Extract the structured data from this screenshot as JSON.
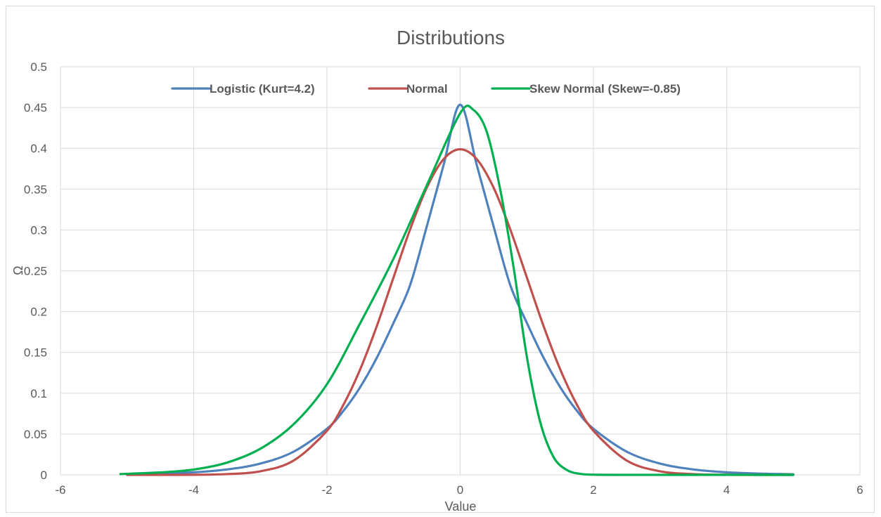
{
  "chart_data": {
    "type": "line",
    "title": "Distributions",
    "xlabel": "Value",
    "ylabel": "Ω",
    "xlim": [
      -6,
      6
    ],
    "ylim": [
      0,
      0.5
    ],
    "x_ticks": [
      -6,
      -4,
      -2,
      0,
      2,
      4,
      6
    ],
    "y_ticks": [
      0,
      0.05,
      0.1,
      0.15,
      0.2,
      0.25,
      0.3,
      0.35,
      0.4,
      0.45,
      0.5
    ],
    "x_tick_labels": [
      "-6",
      "-4",
      "-2",
      "0",
      "2",
      "4",
      "6"
    ],
    "y_tick_labels": [
      "0",
      "0.05",
      "0.1",
      "0.15",
      "0.2",
      "0.25",
      "0.3",
      "0.35",
      "0.4",
      "0.45",
      "0.5"
    ],
    "grid": true,
    "legend_position": "top",
    "series": [
      {
        "name": "Logistic (Kurt=4.2)",
        "color": "#4f81bd",
        "x": [
          -5,
          -4.5,
          -4,
          -3.5,
          -3,
          -2.5,
          -2,
          -1.75,
          -1.5,
          -1.25,
          -1,
          -0.75,
          -0.5,
          -0.25,
          0,
          0.25,
          0.5,
          0.75,
          1,
          1.25,
          1.5,
          1.75,
          2,
          2.5,
          3,
          3.5,
          4,
          4.5,
          5
        ],
        "y": [
          0.0007,
          0.0015,
          0.0031,
          0.0066,
          0.0138,
          0.0284,
          0.0565,
          0.0787,
          0.1076,
          0.1437,
          0.1863,
          0.2329,
          0.3048,
          0.3793,
          0.4535,
          0.3793,
          0.3048,
          0.2329,
          0.1863,
          0.1437,
          0.1076,
          0.0787,
          0.0565,
          0.0284,
          0.0138,
          0.0066,
          0.0031,
          0.0015,
          0.0007
        ]
      },
      {
        "name": "Normal",
        "color": "#c0504d",
        "x": [
          -5,
          -4.5,
          -4,
          -3.5,
          -3,
          -2.5,
          -2,
          -1.75,
          -1.5,
          -1.25,
          -1,
          -0.75,
          -0.5,
          -0.25,
          0,
          0.25,
          0.5,
          0.75,
          1,
          1.25,
          1.5,
          1.75,
          2,
          2.5,
          3,
          3.5,
          4,
          4.5,
          5
        ],
        "y": [
          0.0,
          0.0,
          0.0001,
          0.0009,
          0.0044,
          0.0175,
          0.054,
          0.0863,
          0.1295,
          0.1826,
          0.242,
          0.3011,
          0.3521,
          0.3867,
          0.3989,
          0.3867,
          0.3521,
          0.3011,
          0.242,
          0.1826,
          0.1295,
          0.0863,
          0.054,
          0.0175,
          0.0044,
          0.0009,
          0.0001,
          0.0,
          0.0
        ]
      },
      {
        "name": "Skew Normal (Skew=-0.85)",
        "color": "#00b050",
        "x": [
          -5.1,
          -4.5,
          -4,
          -3.5,
          -3,
          -2.5,
          -2,
          -1.5,
          -1,
          -0.5,
          0,
          0.2,
          0.4,
          0.6,
          0.8,
          1,
          1.2,
          1.4,
          1.6,
          1.8,
          2,
          2.5,
          3,
          4,
          5
        ],
        "y": [
          0.001,
          0.003,
          0.0065,
          0.015,
          0.032,
          0.062,
          0.111,
          0.186,
          0.265,
          0.355,
          0.443,
          0.447,
          0.42,
          0.35,
          0.255,
          0.145,
          0.065,
          0.022,
          0.006,
          0.0012,
          0.0002,
          0.0,
          0.0,
          0.0,
          0.0
        ]
      }
    ]
  }
}
